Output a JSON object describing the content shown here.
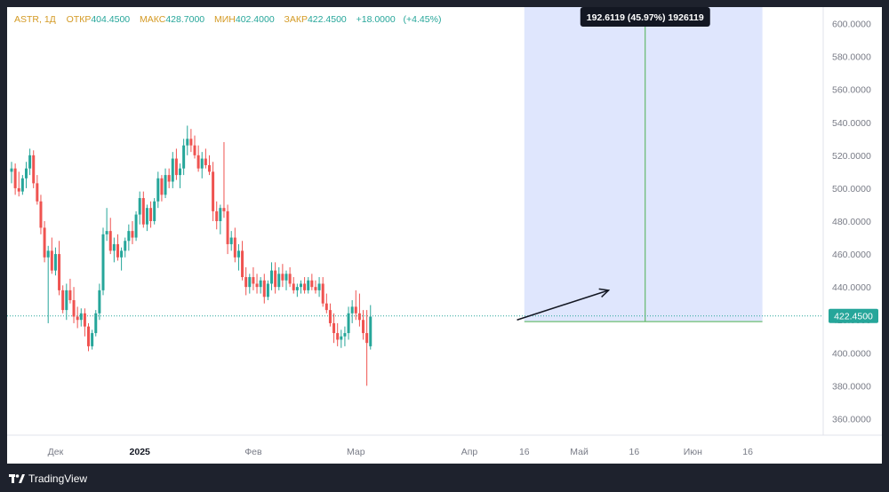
{
  "header": {
    "symbol": "ASTR, 1Д",
    "open_label": "ОТКР",
    "open_value": "404.4500",
    "high_label": "МАКС",
    "high_value": "428.7000",
    "low_label": "МИН",
    "low_value": "402.4000",
    "close_label": "ЗАКР",
    "close_value": "422.4500",
    "change": "+18.0000",
    "change_pct": "(+4.45%)"
  },
  "measure_label": "192.6119 (45.97%) 1926119",
  "last_price_label": "422.4500",
  "brand": "TradingView",
  "colors": {
    "up": "#26a69a",
    "down": "#ef5350",
    "measure_fill": "#dfe6fd",
    "measure_line": "#4caf50",
    "label_bg": "#131722",
    "text_muted": "#787b86",
    "header_label": "#d49a24"
  },
  "chart_data": {
    "type": "candlestick",
    "symbol": "ASTR",
    "interval": "1Д",
    "ylim": [
      350,
      610
    ],
    "y_ticks": [
      360,
      380,
      400,
      420,
      440,
      460,
      480,
      500,
      520,
      540,
      560,
      580,
      600
    ],
    "y_tick_labels": [
      "360.0000",
      "380.0000",
      "400.0000",
      "420.0000",
      "440.0000",
      "460.0000",
      "480.0000",
      "500.0000",
      "520.0000",
      "540.0000",
      "560.0000",
      "580.0000",
      "600.0000"
    ],
    "x_ticks": [
      {
        "label": "Дек",
        "index": 12
      },
      {
        "label": "2025",
        "index": 35
      },
      {
        "label": "Фев",
        "index": 66
      },
      {
        "label": "Мар",
        "index": 94
      },
      {
        "label": "Апр",
        "index": 125
      },
      {
        "label": "16",
        "index": 140
      },
      {
        "label": "Май",
        "index": 155
      },
      {
        "label": "16",
        "index": 170
      },
      {
        "label": "Июн",
        "index": 186
      },
      {
        "label": "16",
        "index": 201
      }
    ],
    "last_close": 422.45,
    "measure": {
      "from_index": 140,
      "to_index": 205,
      "low": 419.0,
      "high": 611.6,
      "change": 192.6119,
      "change_pct": 45.97
    },
    "arrow": {
      "from_index": 138,
      "from_price": 420,
      "to_index": 163,
      "to_price": 438
    },
    "candles": [
      [
        510,
        516,
        503,
        512
      ],
      [
        512,
        515,
        496,
        500
      ],
      [
        500,
        510,
        495,
        498
      ],
      [
        498,
        508,
        496,
        506
      ],
      [
        506,
        516,
        500,
        512
      ],
      [
        512,
        524,
        508,
        520
      ],
      [
        520,
        523,
        500,
        503
      ],
      [
        503,
        508,
        490,
        492
      ],
      [
        492,
        496,
        472,
        476
      ],
      [
        476,
        480,
        455,
        458
      ],
      [
        458,
        465,
        418,
        462
      ],
      [
        462,
        470,
        448,
        450
      ],
      [
        450,
        464,
        447,
        460
      ],
      [
        460,
        468,
        435,
        438
      ],
      [
        438,
        441,
        424,
        426
      ],
      [
        426,
        442,
        420,
        438
      ],
      [
        438,
        445,
        430,
        432
      ],
      [
        432,
        440,
        418,
        422
      ],
      [
        422,
        428,
        415,
        420
      ],
      [
        420,
        427,
        416,
        424
      ],
      [
        424,
        427,
        410,
        416
      ],
      [
        416,
        418,
        401,
        404
      ],
      [
        404,
        414,
        402,
        412
      ],
      [
        412,
        426,
        410,
        424
      ],
      [
        424,
        442,
        420,
        438
      ],
      [
        438,
        476,
        435,
        472
      ],
      [
        472,
        488,
        468,
        474
      ],
      [
        474,
        482,
        460,
        462
      ],
      [
        462,
        470,
        455,
        466
      ],
      [
        466,
        472,
        456,
        458
      ],
      [
        458,
        464,
        450,
        462
      ],
      [
        462,
        470,
        458,
        468
      ],
      [
        468,
        478,
        462,
        474
      ],
      [
        474,
        480,
        466,
        470
      ],
      [
        470,
        486,
        468,
        484
      ],
      [
        484,
        498,
        478,
        494
      ],
      [
        494,
        498,
        476,
        478
      ],
      [
        478,
        490,
        474,
        488
      ],
      [
        488,
        492,
        476,
        480
      ],
      [
        480,
        494,
        478,
        492
      ],
      [
        492,
        510,
        488,
        506
      ],
      [
        506,
        508,
        492,
        496
      ],
      [
        496,
        512,
        494,
        508
      ],
      [
        508,
        512,
        500,
        504
      ],
      [
        504,
        522,
        500,
        518
      ],
      [
        518,
        524,
        505,
        508
      ],
      [
        508,
        515,
        500,
        512
      ],
      [
        512,
        530,
        508,
        526
      ],
      [
        526,
        538,
        520,
        530
      ],
      [
        530,
        536,
        522,
        526
      ],
      [
        526,
        532,
        518,
        520
      ],
      [
        520,
        526,
        510,
        512
      ],
      [
        512,
        522,
        506,
        518
      ],
      [
        518,
        524,
        512,
        514
      ],
      [
        514,
        520,
        508,
        510
      ],
      [
        510,
        516,
        480,
        486
      ],
      [
        486,
        492,
        475,
        480
      ],
      [
        480,
        490,
        472,
        488
      ],
      [
        488,
        528,
        482,
        486
      ],
      [
        486,
        490,
        460,
        466
      ],
      [
        466,
        474,
        462,
        470
      ],
      [
        470,
        476,
        455,
        458
      ],
      [
        458,
        466,
        450,
        462
      ],
      [
        462,
        468,
        444,
        446
      ],
      [
        446,
        452,
        435,
        440
      ],
      [
        440,
        448,
        436,
        446
      ],
      [
        446,
        452,
        438,
        442
      ],
      [
        442,
        448,
        436,
        440
      ],
      [
        440,
        446,
        436,
        444
      ],
      [
        444,
        448,
        430,
        434
      ],
      [
        434,
        444,
        432,
        442
      ],
      [
        442,
        455,
        438,
        450
      ],
      [
        450,
        455,
        436,
        440
      ],
      [
        440,
        452,
        438,
        448
      ],
      [
        448,
        454,
        440,
        444
      ],
      [
        444,
        450,
        438,
        448
      ],
      [
        448,
        452,
        440,
        442
      ],
      [
        442,
        446,
        436,
        438
      ],
      [
        438,
        442,
        434,
        440
      ],
      [
        440,
        444,
        436,
        442
      ],
      [
        442,
        446,
        436,
        438
      ],
      [
        438,
        446,
        436,
        444
      ],
      [
        444,
        448,
        438,
        440
      ],
      [
        440,
        444,
        436,
        438
      ],
      [
        438,
        446,
        434,
        442
      ],
      [
        442,
        446,
        428,
        430
      ],
      [
        430,
        436,
        424,
        426
      ],
      [
        426,
        430,
        416,
        418
      ],
      [
        418,
        424,
        406,
        412
      ],
      [
        412,
        418,
        404,
        408
      ],
      [
        408,
        414,
        403,
        410
      ],
      [
        410,
        416,
        404,
        412
      ],
      [
        412,
        428,
        408,
        424
      ],
      [
        424,
        432,
        418,
        428
      ],
      [
        428,
        438,
        420,
        424
      ],
      [
        424,
        436,
        416,
        420
      ],
      [
        420,
        426,
        408,
        412
      ],
      [
        412,
        426,
        380,
        406
      ],
      [
        404,
        429,
        402,
        422
      ]
    ]
  }
}
